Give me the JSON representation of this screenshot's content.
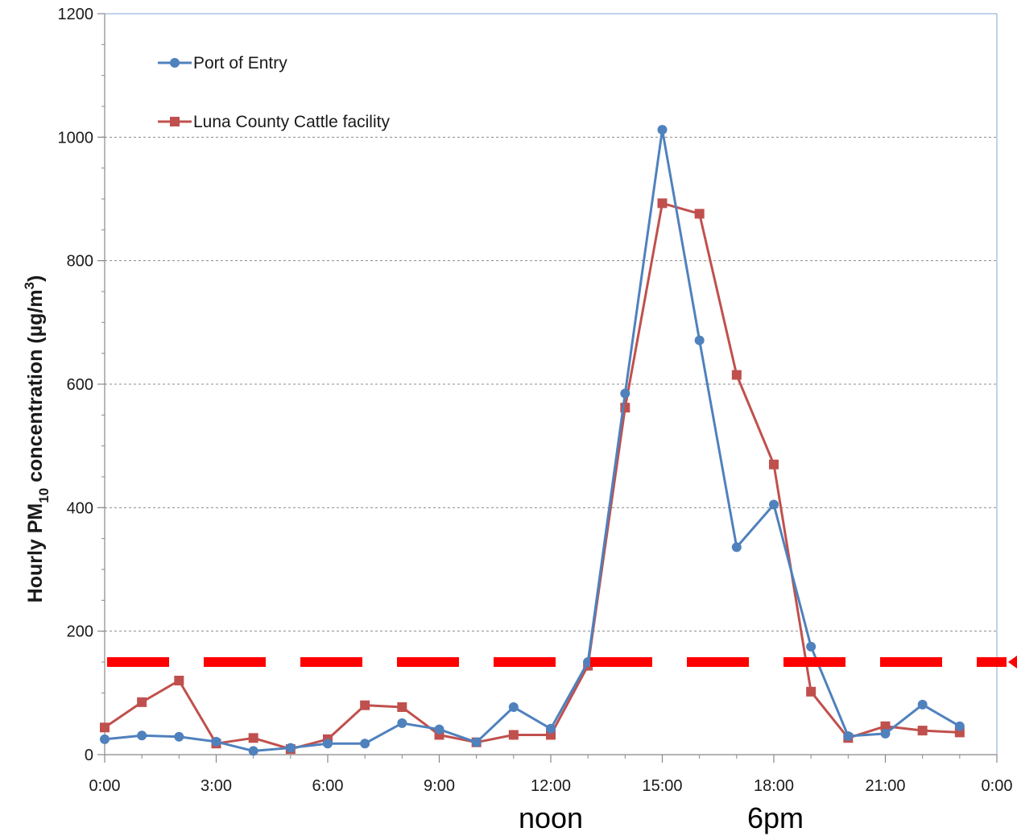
{
  "chart_data": {
    "type": "line",
    "title": "",
    "xlabel": "",
    "ylabel": {
      "prefix": "Hourly PM",
      "subscript": "10",
      "suffix": " concentration (µg/m",
      "superscript": "3",
      "close": ")"
    },
    "ylim": [
      0,
      1200
    ],
    "y_ticks": [
      "0",
      "200",
      "400",
      "600",
      "800",
      "1000",
      "1200"
    ],
    "x_ticks": [
      "0:00",
      "3:00",
      "6:00",
      "9:00",
      "12:00",
      "15:00",
      "18:00",
      "21:00",
      "0:00"
    ],
    "x": [
      0,
      1,
      2,
      3,
      4,
      5,
      6,
      7,
      8,
      9,
      10,
      11,
      12,
      13,
      14,
      15,
      16,
      17,
      18,
      19,
      20,
      21,
      22,
      23
    ],
    "grid": "horizontal dashed",
    "legend_position": "top-left",
    "series": [
      {
        "name": "Port of Entry",
        "color": "#4f81bd",
        "marker": "circle",
        "values": [
          25,
          31,
          29,
          21,
          6,
          11,
          18,
          18,
          51,
          41,
          20,
          77,
          42,
          150,
          585,
          1012,
          671,
          336,
          405,
          175,
          30,
          34,
          81,
          46
        ]
      },
      {
        "name": "Luna County Cattle facility",
        "color": "#c0504d",
        "marker": "square",
        "values": [
          44,
          85,
          120,
          18,
          27,
          9,
          25,
          80,
          77,
          32,
          20,
          32,
          32,
          144,
          562,
          893,
          876,
          615,
          470,
          102,
          27,
          46,
          39,
          36
        ]
      }
    ],
    "threshold": {
      "value": 150,
      "color": "#ff0000",
      "style": "dashed"
    },
    "annotations": [
      "noon",
      "6pm"
    ]
  }
}
